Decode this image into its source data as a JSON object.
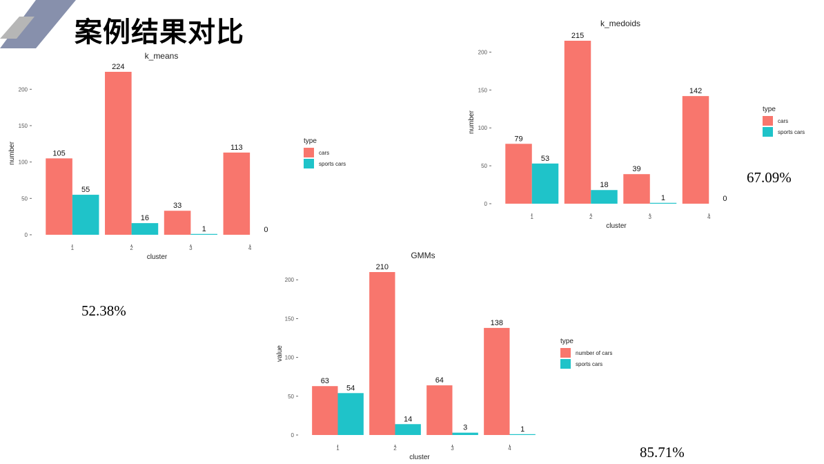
{
  "slide": {
    "title": "案例结果对比",
    "accuracy_kmeans": "52.38%",
    "accuracy_kmedoids": "67.09%",
    "accuracy_gmms": "85.71%"
  },
  "colors": {
    "series_1": "#f8766d",
    "series_2": "#1fc3c9",
    "deco_blue": "#8790ac",
    "deco_grey": "#b6b6b6"
  },
  "chart_data": [
    {
      "type": "bar",
      "title": "k_means",
      "xlabel": "cluster",
      "ylabel": "number",
      "categories": [
        "1",
        "2",
        "3",
        "4"
      ],
      "series": [
        {
          "name": "cars",
          "values": [
            105,
            224,
            33,
            113
          ]
        },
        {
          "name": "sports cars",
          "values": [
            55,
            16,
            1,
            0
          ]
        }
      ],
      "ylim": [
        0,
        224
      ],
      "yticks": [
        0,
        50,
        100,
        150,
        200
      ],
      "legend_title": "type",
      "legend_position": "right",
      "grid": false
    },
    {
      "type": "bar",
      "title": "k_medoids",
      "xlabel": "cluster",
      "ylabel": "number",
      "categories": [
        "1",
        "2",
        "3",
        "4"
      ],
      "series": [
        {
          "name": "cars",
          "values": [
            79,
            215,
            39,
            142
          ]
        },
        {
          "name": "sports cars",
          "values": [
            53,
            18,
            1,
            0
          ]
        }
      ],
      "ylim": [
        0,
        215
      ],
      "yticks": [
        0,
        50,
        100,
        150,
        200
      ],
      "legend_title": "type",
      "legend_position": "right",
      "grid": false
    },
    {
      "type": "bar",
      "title": "GMMs",
      "xlabel": "cluster",
      "ylabel": "value",
      "categories": [
        "1",
        "2",
        "3",
        "4"
      ],
      "series": [
        {
          "name": "number of cars",
          "values": [
            63,
            210,
            64,
            138
          ]
        },
        {
          "name": "sports cars",
          "values": [
            54,
            14,
            3,
            1
          ]
        }
      ],
      "ylim": [
        0,
        210
      ],
      "yticks": [
        0,
        50,
        100,
        150,
        200
      ],
      "legend_title": "type",
      "legend_position": "right",
      "grid": false
    }
  ]
}
